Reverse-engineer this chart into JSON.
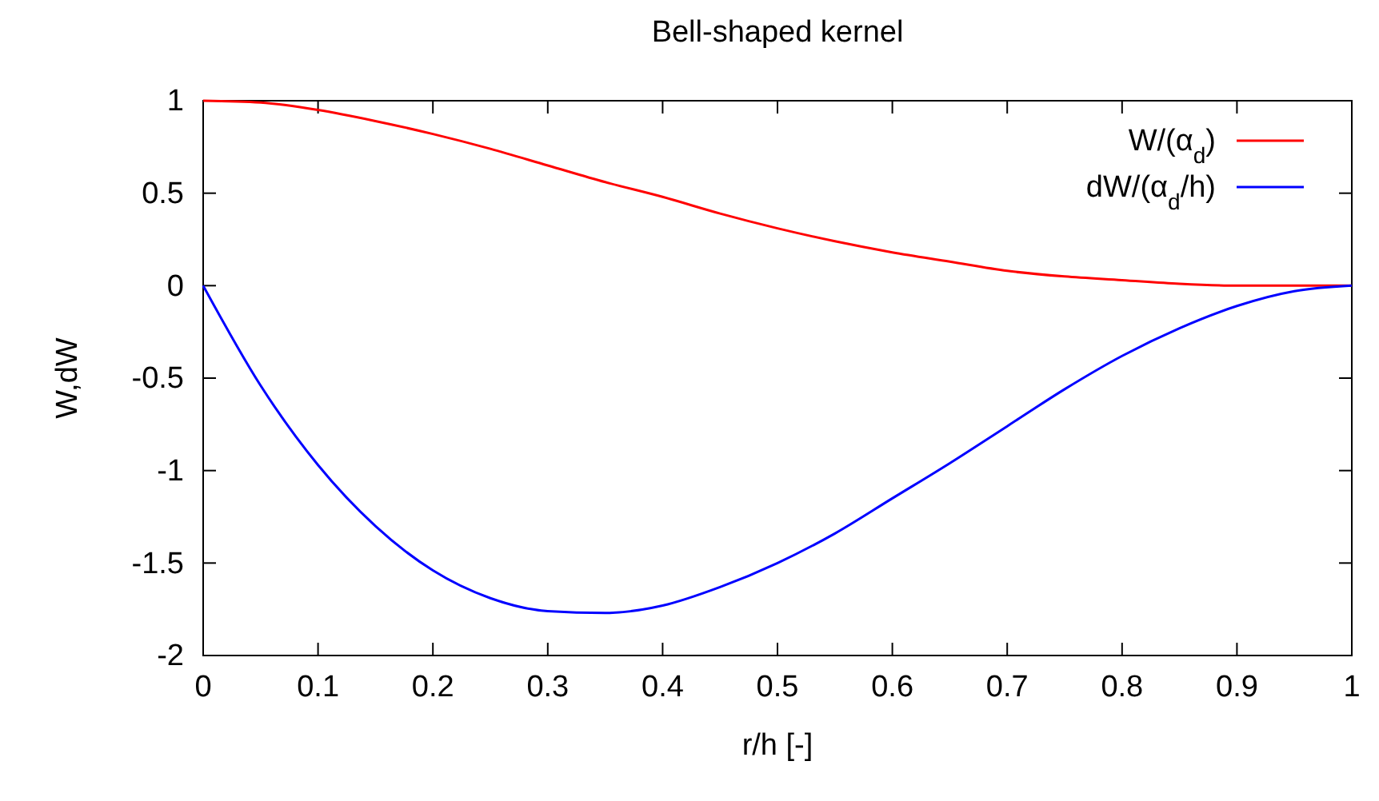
{
  "chart_data": {
    "type": "line",
    "title": "Bell-shaped kernel",
    "xlabel": "r/h [-]",
    "ylabel": "W,dW",
    "x": [
      0,
      0.05,
      0.1,
      0.15,
      0.2,
      0.25,
      0.3,
      0.35,
      0.4,
      0.45,
      0.5,
      0.55,
      0.6,
      0.65,
      0.7,
      0.75,
      0.8,
      0.85,
      0.9,
      0.95,
      1
    ],
    "series": [
      {
        "name": "W/(α$_{d}$)",
        "color": "#ff0000",
        "values": [
          1,
          0.99,
          0.95,
          0.89,
          0.82,
          0.74,
          0.65,
          0.56,
          0.48,
          0.39,
          0.31,
          0.24,
          0.18,
          0.13,
          0.08,
          0.05,
          0.03,
          0.01,
          0,
          0,
          0
        ]
      },
      {
        "name": "dW/(α$_{d}$/h)",
        "color": "#0000ff",
        "values": [
          0,
          -0.54,
          -0.97,
          -1.3,
          -1.54,
          -1.69,
          -1.76,
          -1.77,
          -1.73,
          -1.63,
          -1.5,
          -1.34,
          -1.15,
          -0.96,
          -0.76,
          -0.56,
          -0.38,
          -0.23,
          -0.11,
          -0.03,
          0
        ]
      }
    ],
    "xlim": [
      0,
      1
    ],
    "ylim": [
      -2,
      1
    ],
    "xticks": [
      0,
      0.1,
      0.2,
      0.3,
      0.4,
      0.5,
      0.6,
      0.7,
      0.8,
      0.9,
      1
    ],
    "yticks": [
      -2,
      -1.5,
      -1,
      -0.5,
      0,
      0.5,
      1
    ],
    "grid": false,
    "legend": "top right",
    "marker": "none",
    "line_style": "solid"
  }
}
